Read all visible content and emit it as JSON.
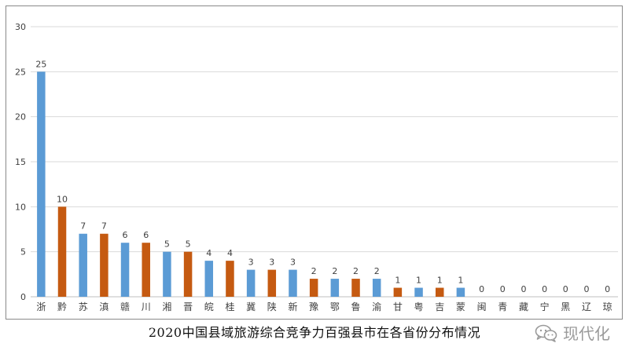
{
  "caption": "2020中国县域旅游综合竞争力百强县市在各省份分布情况",
  "watermark": {
    "text": "现代化",
    "icon": "wechat-icon"
  },
  "colors": {
    "blue": "#5b9bd5",
    "orange": "#c55a11",
    "grid": "#d9d9d9",
    "axis_text": "#404040"
  },
  "chart_data": {
    "type": "bar",
    "title": "",
    "xlabel": "",
    "ylabel": "",
    "ylim": [
      0,
      30
    ],
    "yticks": [
      0,
      5,
      10,
      15,
      20,
      25,
      30
    ],
    "grid": true,
    "data_labels": true,
    "categories": [
      "浙",
      "黔",
      "苏",
      "滇",
      "赣",
      "川",
      "湘",
      "晋",
      "皖",
      "桂",
      "冀",
      "陕",
      "新",
      "豫",
      "鄂",
      "鲁",
      "渝",
      "甘",
      "粤",
      "吉",
      "蒙",
      "闽",
      "青",
      "藏",
      "宁",
      "黑",
      "辽",
      "琼"
    ],
    "values": [
      25,
      10,
      7,
      7,
      6,
      6,
      5,
      5,
      4,
      4,
      3,
      3,
      3,
      2,
      2,
      2,
      2,
      1,
      1,
      1,
      1,
      0,
      0,
      0,
      0,
      0,
      0,
      0
    ],
    "bar_colors": [
      "blue",
      "orange",
      "blue",
      "orange",
      "blue",
      "orange",
      "blue",
      "orange",
      "blue",
      "orange",
      "blue",
      "orange",
      "blue",
      "orange",
      "blue",
      "orange",
      "blue",
      "orange",
      "blue",
      "orange",
      "blue",
      "orange",
      "blue",
      "orange",
      "blue",
      "orange",
      "blue",
      "orange"
    ]
  }
}
